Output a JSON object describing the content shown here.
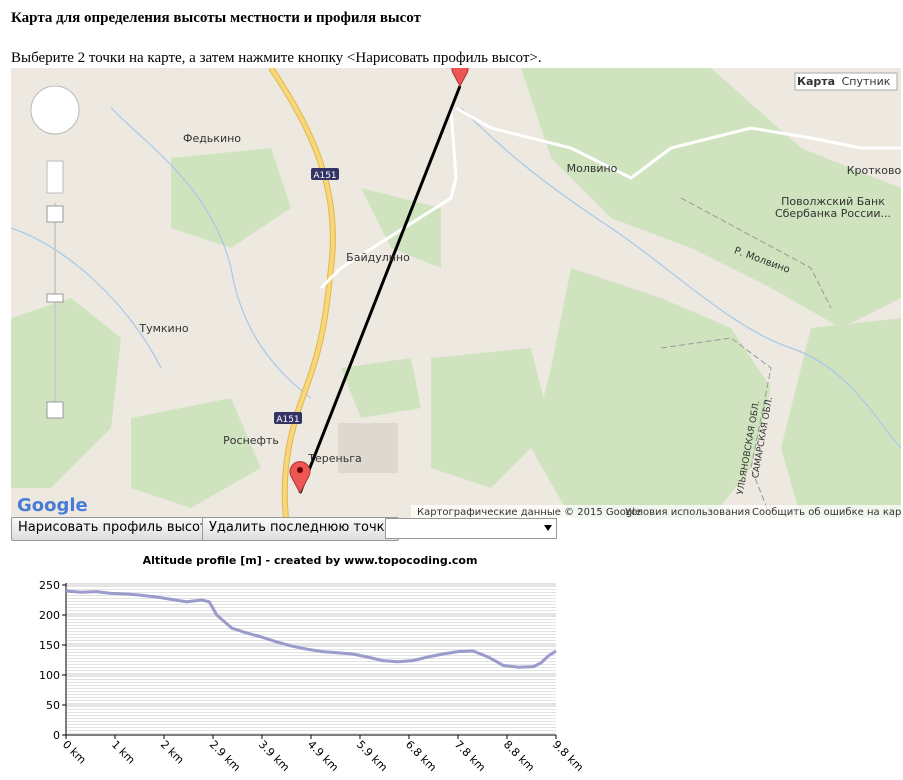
{
  "header": {
    "title": "Карта для определения высоты местности и профиля высот",
    "instructions": "Выберите 2 точки на карте, а затем нажмите кнопку <Нарисовать профиль высот>."
  },
  "map": {
    "type_buttons": [
      "Карта",
      "Спутник"
    ],
    "labels": [
      "Федькино",
      "Молвино",
      "Кротково",
      "Поволжский Банк",
      "Сбербанка России...",
      "A151",
      "Байдулино",
      "Р. Молвино",
      "Тумкино",
      "A151",
      "Роснефть",
      "Тереньга",
      "УЛЬЯНОВСКАЯ ОБЛ.",
      "САМАРСКАЯ ОБЛ."
    ],
    "logo": "Google",
    "attribution": [
      "Картографические данные © 2015 Google",
      "Условия использования",
      "Сообщить об ошибке на карте"
    ]
  },
  "buttons": [
    "Нарисовать профиль высот",
    "Удалить последнюю точку"
  ],
  "chart_data": {
    "type": "line",
    "title": "Altitude profile [m] - created by www.topocoding.com",
    "x": [
      0,
      0.3,
      0.6,
      0.9,
      1.2,
      1.5,
      1.8,
      2.1,
      2.4,
      2.7,
      2.85,
      3.0,
      3.3,
      3.6,
      3.9,
      4.2,
      4.5,
      4.8,
      5.1,
      5.4,
      5.7,
      6.0,
      6.3,
      6.6,
      6.9,
      7.2,
      7.5,
      7.8,
      8.1,
      8.4,
      8.7,
      9.0,
      9.3,
      9.45,
      9.6,
      9.75
    ],
    "values": [
      240,
      238,
      239,
      236,
      235,
      233,
      230,
      226,
      222,
      225,
      222,
      200,
      178,
      170,
      163,
      155,
      148,
      143,
      139,
      137,
      135,
      130,
      124,
      122,
      124,
      130,
      135,
      139,
      140,
      130,
      116,
      113,
      114,
      120,
      132,
      140
    ],
    "color": "#9a9acb",
    "xlim": [
      0,
      9.75
    ],
    "xticks": [
      {
        "value": 0,
        "label": "0 km"
      },
      {
        "value": 0.975,
        "label": "1 km"
      },
      {
        "value": 1.95,
        "label": "2 km"
      },
      {
        "value": 2.925,
        "label": "2.9 km"
      },
      {
        "value": 3.9,
        "label": "3.9 km"
      },
      {
        "value": 4.875,
        "label": "4.9 km"
      },
      {
        "value": 5.85,
        "label": "5.9 km"
      },
      {
        "value": 6.825,
        "label": "6.8 km"
      },
      {
        "value": 7.8,
        "label": "7.8 km"
      },
      {
        "value": 8.775,
        "label": "8.8 km"
      },
      {
        "value": 9.75,
        "label": "9.8 km"
      }
    ],
    "ylim": [
      0,
      250
    ],
    "yticks": [
      0,
      50,
      100,
      150,
      200,
      250
    ],
    "grid": true
  }
}
